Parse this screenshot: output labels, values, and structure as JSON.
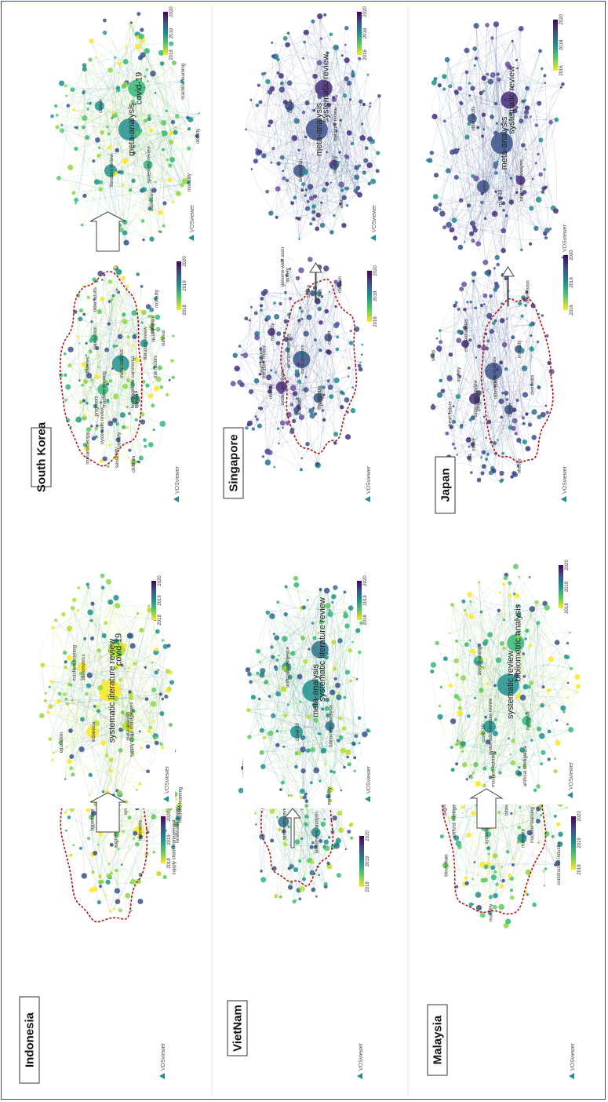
{
  "panels": [
    {
      "country": "South Korea",
      "colorbar_ticks": [
        "2018",
        "2019",
        "2020"
      ],
      "zoom_ticks": [
        "2018",
        "2019",
        "2020"
      ],
      "left_labels": [
        "meta-analysis",
        "machine learning",
        "covid-19",
        "depression",
        "literature review",
        "systematic review",
        "mortality",
        "obesity",
        "older adults",
        "cancer",
        "children",
        "hepatocellular carcinoma",
        "prognosis",
        "risk factors",
        "stroke",
        "diabetes",
        "sensitivity",
        "immunotherapy",
        "quality of life",
        "survival"
      ],
      "zoom_labels": [
        "meta-analysis",
        "covid-19",
        "literature review",
        "systematic review",
        "cancer",
        "mortality",
        "depression",
        "machine learning",
        "obesity"
      ],
      "theme": "green"
    },
    {
      "country": "Indonesia",
      "colorbar_ticks": [
        "2018",
        "2019",
        "2020"
      ],
      "zoom_ticks": [
        "2018",
        "2019",
        "2020"
      ],
      "left_labels": [
        "systematic literature review",
        "covid-19",
        "indonesia",
        "meta-analysis",
        "bibliometrics",
        "supply chain management",
        "tuberculosis",
        "machine learning",
        "renewable energy",
        "education",
        "public health",
        "pandemic",
        "hypertension",
        "e-commerce",
        "augmented reality",
        "literature review",
        "sustainability",
        "smes"
      ],
      "zoom_labels": [
        "systematic literature review",
        "covid-19",
        "indonesia",
        "meta-analysis",
        "bibliometrics",
        "supply chain management",
        "machine learning",
        "education"
      ],
      "theme": "yellow"
    },
    {
      "country": "Singapore",
      "colorbar_ticks": [
        "2016",
        "2018",
        "2020"
      ],
      "zoom_ticks": [
        "2016",
        "2018",
        "2020"
      ],
      "left_labels": [
        "meta-analysis",
        "systematic review",
        "depression",
        "mortality",
        "cancer",
        "asia",
        "children",
        "stroke",
        "obesity",
        "diabetes",
        "prognosis",
        "immunotherapy",
        "heart failure",
        "genome-wide association",
        "anxiety",
        "literature review"
      ],
      "zoom_labels": [
        "meta-analysis",
        "systematic review",
        "depression",
        "mortality",
        "cancer",
        "asia",
        "literature review"
      ],
      "theme": "purple"
    },
    {
      "country": "VietNam",
      "colorbar_ticks": [
        "2018",
        "2019",
        "2020"
      ],
      "zoom_ticks": [
        "2018",
        "2019",
        "2020"
      ],
      "left_labels": [
        "meta-analysis",
        "systematic review",
        "bibliometric analysis",
        "covid-19",
        "vietnam",
        "climate change",
        "pharmacodynamics",
        "reliability",
        "vietnamese",
        "economic growth",
        "renewable energy",
        "hypertension",
        "cardiovascular disease",
        "fuzzy logic"
      ],
      "zoom_labels": [
        "meta-analysis",
        "systematic literature review",
        "covid-19",
        "bibliometric analysis",
        "artificial intelligence",
        "mortality"
      ],
      "theme": "teal"
    },
    {
      "country": "Japan",
      "colorbar_ticks": [
        "2016",
        "2018",
        "2020"
      ],
      "zoom_ticks": [
        "2016",
        "2018",
        "2020"
      ],
      "left_labels": [
        "meta-analysis",
        "systematic review",
        "cancer",
        "children",
        "mortality",
        "asia",
        "depression",
        "stroke",
        "obesity",
        "prognosis",
        "dementia",
        "older adults",
        "diabetes",
        "heart failure",
        "sleep",
        "anxiety"
      ],
      "zoom_labels": [
        "meta-analysis",
        "systematic review",
        "cancer",
        "bibliometric analysis",
        "older adults",
        "covid-19"
      ],
      "theme": "purple"
    },
    {
      "country": "Malaysia",
      "colorbar_ticks": [
        "2018",
        "2019",
        "2020"
      ],
      "zoom_ticks": [
        "2018",
        "2019",
        "2020"
      ],
      "left_labels": [
        "bibliometric analysis",
        "systematic review",
        "malaysia",
        "covid-19",
        "meta-analysis",
        "machine learning",
        "deep learning",
        "construction industry",
        "sustainability",
        "literature review",
        "artificial intelligence",
        "blockchain",
        "education",
        "mortality",
        "construction projects",
        "augmented reality",
        "digital twin"
      ],
      "zoom_labels": [
        "systematic review",
        "bibliometric analysis",
        "systematic literature review",
        "malaysia",
        "deep learning",
        "machine learning",
        "artificial intelligence",
        "covid-19"
      ],
      "theme": "green"
    }
  ],
  "watermark": "VOSviewer",
  "colors": {
    "border": "#2f4f8f",
    "highlight": "#b3141b",
    "arrow": "#444444",
    "viridis": [
      "#440154",
      "#3b528b",
      "#21908d",
      "#5dc963",
      "#fde725"
    ]
  }
}
